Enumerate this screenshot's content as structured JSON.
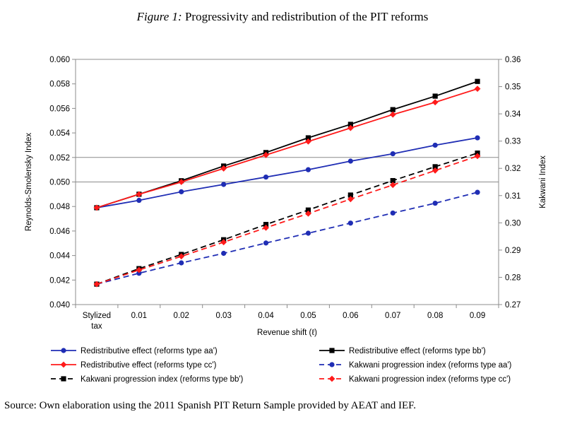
{
  "figure": {
    "label": "Figure 1:",
    "title": "Progressivity and redistribution of the PIT reforms",
    "source": "Source: Own elaboration using the 2011 Spanish PIT Return Sample provided by AEAT and IEF."
  },
  "chart_data": {
    "type": "line",
    "xlabel": "Revenue shift (ℓ)",
    "ylabel": "Reynolds-Smolensky Index",
    "y2label": "Kakwani Index",
    "categories": [
      "Stylized tax",
      "0.01",
      "0.02",
      "0.03",
      "0.04",
      "0.05",
      "0.06",
      "0.07",
      "0.08",
      "0.09"
    ],
    "ylim": [
      0.04,
      0.06
    ],
    "yticks": [
      "0.040",
      "0.042",
      "0.044",
      "0.046",
      "0.048",
      "0.050",
      "0.052",
      "0.054",
      "0.056",
      "0.058",
      "0.060"
    ],
    "y2lim": [
      0.27,
      0.36
    ],
    "y2ticks": [
      "0.27",
      "0.28",
      "0.29",
      "0.30",
      "0.31",
      "0.32",
      "0.33",
      "0.34",
      "0.35",
      "0.36"
    ],
    "grid": "horizontal at 0.050 and 0.052",
    "legend_position": "bottom",
    "series": [
      {
        "name": "Redistributive effect (reforms type aa')",
        "axis": "left",
        "color": "#1f2db4",
        "marker": "circle",
        "dash": false,
        "values": [
          0.0479,
          0.0485,
          0.0492,
          0.0498,
          0.0504,
          0.051,
          0.0517,
          0.0523,
          0.053,
          0.0536
        ]
      },
      {
        "name": "Redistributive effect (reforms type bb')",
        "axis": "left",
        "color": "#000000",
        "marker": "square",
        "dash": false,
        "values": [
          0.0479,
          0.049,
          0.0501,
          0.0513,
          0.0524,
          0.0536,
          0.0547,
          0.0559,
          0.057,
          0.0582
        ]
      },
      {
        "name": "Redistributive effect (reforms type cc')",
        "axis": "left",
        "color": "#ff1a1a",
        "marker": "diamond",
        "dash": false,
        "values": [
          0.0479,
          0.049,
          0.05,
          0.0511,
          0.0522,
          0.0533,
          0.0544,
          0.0555,
          0.0565,
          0.0576
        ]
      },
      {
        "name": "Kakwani progression index (reforms type aa')",
        "axis": "right",
        "color": "#1f2db4",
        "marker": "circle",
        "dash": true,
        "values": [
          0.2775,
          0.2815,
          0.2853,
          0.2888,
          0.2926,
          0.2962,
          0.2999,
          0.3036,
          0.3072,
          0.3112
        ]
      },
      {
        "name": "Kakwani progression index (reforms type bb')",
        "axis": "right",
        "color": "#000000",
        "marker": "square",
        "dash": true,
        "values": [
          0.2775,
          0.2832,
          0.2884,
          0.2938,
          0.2994,
          0.3047,
          0.3102,
          0.3155,
          0.3206,
          0.3256
        ]
      },
      {
        "name": "Kakwani progression index (reforms type cc')",
        "axis": "right",
        "color": "#ff1a1a",
        "marker": "diamond",
        "dash": true,
        "values": [
          0.2775,
          0.2827,
          0.2877,
          0.2929,
          0.2982,
          0.3034,
          0.3087,
          0.3139,
          0.3192,
          0.3245
        ]
      }
    ]
  }
}
